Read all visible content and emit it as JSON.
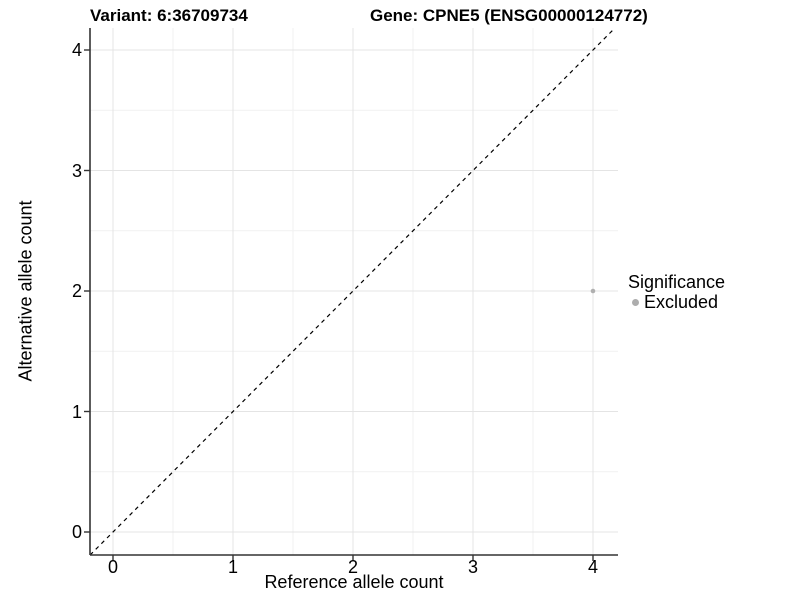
{
  "titles": {
    "variant": "Variant: 6:36709734",
    "gene": "Gene: CPNE5 (ENSG00000124772)"
  },
  "chart_data": {
    "type": "scatter",
    "xlabel": "Reference allele count",
    "ylabel": "Alternative allele count",
    "x_ticks": [
      0,
      1,
      2,
      3,
      4
    ],
    "y_ticks": [
      0,
      1,
      2,
      3,
      4
    ],
    "xlim": [
      -0.19,
      4.21
    ],
    "ylim": [
      -0.19,
      4.19
    ],
    "grid": "major+minor",
    "abline": {
      "slope": 1,
      "intercept": 0,
      "style": "dashed"
    },
    "points": [
      {
        "x": 4,
        "y": 2,
        "significance": "Excluded"
      }
    ],
    "legend": {
      "title": "Significance",
      "position": "right",
      "entries": [
        {
          "label": "Excluded",
          "color": "#adadad"
        }
      ]
    }
  },
  "colors": {
    "background": "#ffffff",
    "grid_major": "#e4e4e4",
    "grid_minor": "#f1f1f1",
    "axis_line": "#333333",
    "abline": "#000000",
    "point": "#b0b0b0",
    "text": "#000000"
  }
}
